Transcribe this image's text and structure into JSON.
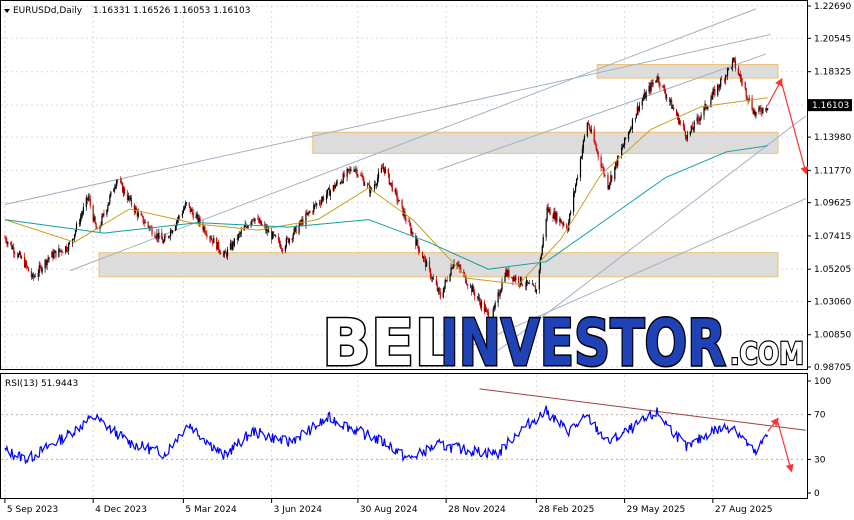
{
  "header": {
    "symbol": "EURUSDd,Daily",
    "ohlc": "1.16331 1.16526 1.16053 1.16103"
  },
  "price_label": "1.16103",
  "watermark": {
    "bel": "BEL",
    "investor": "INVESTOR",
    "com": ".COM"
  },
  "colors": {
    "bull": "#000000",
    "bear": "#c00000",
    "ma_fast": "#c8a020",
    "ma_slow": "#10a0a0",
    "trend": "#9fb1c4",
    "zone_fill": "#dcdcdc",
    "zone_border": "#f0c070",
    "arrow": "#ff3333",
    "rsi_line": "#0000ff",
    "rsi_trend": "#a04040",
    "price_box": "#000000"
  },
  "chart_data": [
    {
      "type": "candlestick",
      "title": "",
      "y_ticks": [
        "1.22690",
        "1.20545",
        "1.18325",
        "1.16103",
        "1.13980",
        "1.11770",
        "1.09625",
        "1.07415",
        "1.05205",
        "1.03060",
        "1.00850",
        "0.98705"
      ],
      "ylim": [
        0.98705,
        1.2269
      ],
      "x_ticks": [
        "5 Sep 2023",
        "4 Dec 2023",
        "5 Mar 2024",
        "3 Jun 2024",
        "30 Aug 2024",
        "28 Nov 2024",
        "28 Feb 2025",
        "29 May 2025",
        "27 Aug 2025"
      ],
      "x_tick_dates": [
        "2023-09-05",
        "2023-12-04",
        "2024-03-05",
        "2024-06-03",
        "2024-08-30",
        "2024-11-28",
        "2025-02-28",
        "2025-05-29",
        "2025-08-27"
      ],
      "series_path": [
        {
          "date": "2023-09-05",
          "price": 1.073
        },
        {
          "date": "2023-09-25",
          "price": 1.056
        },
        {
          "date": "2023-10-03",
          "price": 1.046
        },
        {
          "date": "2023-10-20",
          "price": 1.06
        },
        {
          "date": "2023-11-10",
          "price": 1.068
        },
        {
          "date": "2023-11-29",
          "price": 1.1
        },
        {
          "date": "2023-12-08",
          "price": 1.076
        },
        {
          "date": "2023-12-28",
          "price": 1.112
        },
        {
          "date": "2024-01-20",
          "price": 1.087
        },
        {
          "date": "2024-02-14",
          "price": 1.07
        },
        {
          "date": "2024-03-08",
          "price": 1.095
        },
        {
          "date": "2024-04-16",
          "price": 1.061
        },
        {
          "date": "2024-05-15",
          "price": 1.087
        },
        {
          "date": "2024-06-14",
          "price": 1.067
        },
        {
          "date": "2024-07-17",
          "price": 1.094
        },
        {
          "date": "2024-08-26",
          "price": 1.12
        },
        {
          "date": "2024-09-12",
          "price": 1.104
        },
        {
          "date": "2024-09-25",
          "price": 1.12
        },
        {
          "date": "2024-10-23",
          "price": 1.078
        },
        {
          "date": "2024-11-22",
          "price": 1.034
        },
        {
          "date": "2024-12-06",
          "price": 1.058
        },
        {
          "date": "2025-01-13",
          "price": 1.018
        },
        {
          "date": "2025-01-27",
          "price": 1.05
        },
        {
          "date": "2025-02-28",
          "price": 1.038
        },
        {
          "date": "2025-03-11",
          "price": 1.092
        },
        {
          "date": "2025-04-01",
          "price": 1.08
        },
        {
          "date": "2025-04-21",
          "price": 1.15
        },
        {
          "date": "2025-05-12",
          "price": 1.108
        },
        {
          "date": "2025-06-12",
          "price": 1.16
        },
        {
          "date": "2025-07-01",
          "price": 1.18
        },
        {
          "date": "2025-08-01",
          "price": 1.14
        },
        {
          "date": "2025-09-17",
          "price": 1.19
        },
        {
          "date": "2025-10-09",
          "price": 1.155
        },
        {
          "date": "2025-10-22",
          "price": 1.161
        }
      ],
      "ma_fast_path": [
        {
          "date": "2023-09-05",
          "price": 1.085
        },
        {
          "date": "2023-11-15",
          "price": 1.07
        },
        {
          "date": "2024-01-10",
          "price": 1.092
        },
        {
          "date": "2024-03-20",
          "price": 1.082
        },
        {
          "date": "2024-05-20",
          "price": 1.078
        },
        {
          "date": "2024-07-20",
          "price": 1.085
        },
        {
          "date": "2024-09-10",
          "price": 1.106
        },
        {
          "date": "2024-10-25",
          "price": 1.085
        },
        {
          "date": "2024-12-20",
          "price": 1.046
        },
        {
          "date": "2025-02-10",
          "price": 1.042
        },
        {
          "date": "2025-03-25",
          "price": 1.072
        },
        {
          "date": "2025-05-05",
          "price": 1.115
        },
        {
          "date": "2025-06-25",
          "price": 1.145
        },
        {
          "date": "2025-08-15",
          "price": 1.16
        },
        {
          "date": "2025-10-22",
          "price": 1.166
        }
      ],
      "ma_slow_path": [
        {
          "date": "2023-09-05",
          "price": 1.085
        },
        {
          "date": "2023-12-15",
          "price": 1.076
        },
        {
          "date": "2024-03-20",
          "price": 1.083
        },
        {
          "date": "2024-06-20",
          "price": 1.08
        },
        {
          "date": "2024-09-10",
          "price": 1.085
        },
        {
          "date": "2024-11-10",
          "price": 1.07
        },
        {
          "date": "2025-01-10",
          "price": 1.052
        },
        {
          "date": "2025-03-10",
          "price": 1.057
        },
        {
          "date": "2025-05-10",
          "price": 1.085
        },
        {
          "date": "2025-07-10",
          "price": 1.113
        },
        {
          "date": "2025-09-10",
          "price": 1.13
        },
        {
          "date": "2025-10-22",
          "price": 1.134
        }
      ],
      "zones": [
        {
          "from": "2025-05-01",
          "to": "2025-11-30",
          "low": 1.179,
          "high": 1.188
        },
        {
          "from": "2024-07-15",
          "to": "2025-11-30",
          "low": 1.129,
          "high": 1.143
        },
        {
          "from": "2023-12-10",
          "to": "2025-11-30",
          "low": 1.047,
          "high": 1.063
        }
      ],
      "trendlines": [
        {
          "from": {
            "date": "2023-09-05",
            "price": 1.095
          },
          "to": {
            "date": "2025-10-25",
            "price": 1.208
          }
        },
        {
          "from": {
            "date": "2023-11-10",
            "price": 1.051
          },
          "to": {
            "date": "2025-10-10",
            "price": 1.225
          }
        },
        {
          "from": {
            "date": "2024-11-20",
            "price": 1.118
          },
          "to": {
            "date": "2025-10-20",
            "price": 1.195
          }
        },
        {
          "from": {
            "date": "2025-01-20",
            "price": 0.998
          },
          "to": {
            "date": "2025-11-30",
            "price": 1.154
          }
        },
        {
          "from": {
            "date": "2024-12-20",
            "price": 1.0
          },
          "to": {
            "date": "2025-11-30",
            "price": 1.099
          }
        }
      ],
      "arrows": [
        {
          "from": {
            "date": "2025-10-22",
            "price": 1.161
          },
          "to": {
            "date": "2025-11-05",
            "price": 1.178
          }
        },
        {
          "from": {
            "date": "2025-11-05",
            "price": 1.176
          },
          "to": {
            "date": "2025-11-30",
            "price": 1.116
          }
        }
      ]
    },
    {
      "type": "line",
      "title": "RSI(13) 51.9443",
      "y_ticks": [
        "100",
        "70",
        "30",
        "0"
      ],
      "ylim": [
        0,
        100
      ],
      "levels": [
        70,
        30
      ],
      "series_path": [
        {
          "date": "2023-09-05",
          "value": 38
        },
        {
          "date": "2023-09-28",
          "value": 30
        },
        {
          "date": "2023-11-01",
          "value": 48
        },
        {
          "date": "2023-12-05",
          "value": 68
        },
        {
          "date": "2024-01-10",
          "value": 45
        },
        {
          "date": "2024-02-15",
          "value": 35
        },
        {
          "date": "2024-03-10",
          "value": 62
        },
        {
          "date": "2024-04-15",
          "value": 33
        },
        {
          "date": "2024-05-15",
          "value": 55
        },
        {
          "date": "2024-06-20",
          "value": 45
        },
        {
          "date": "2024-08-01",
          "value": 67
        },
        {
          "date": "2024-09-05",
          "value": 53
        },
        {
          "date": "2024-10-01",
          "value": 43
        },
        {
          "date": "2024-10-20",
          "value": 30
        },
        {
          "date": "2024-11-20",
          "value": 43
        },
        {
          "date": "2024-12-20",
          "value": 38
        },
        {
          "date": "2025-01-20",
          "value": 35
        },
        {
          "date": "2025-02-10",
          "value": 55
        },
        {
          "date": "2025-03-10",
          "value": 73
        },
        {
          "date": "2025-04-01",
          "value": 55
        },
        {
          "date": "2025-04-21",
          "value": 68
        },
        {
          "date": "2025-05-12",
          "value": 45
        },
        {
          "date": "2025-06-10",
          "value": 60
        },
        {
          "date": "2025-07-01",
          "value": 72
        },
        {
          "date": "2025-08-01",
          "value": 40
        },
        {
          "date": "2025-08-25",
          "value": 55
        },
        {
          "date": "2025-09-17",
          "value": 60
        },
        {
          "date": "2025-10-09",
          "value": 35
        },
        {
          "date": "2025-10-22",
          "value": 52
        }
      ],
      "trendline": {
        "from": {
          "date": "2025-01-01",
          "value": 93
        },
        "to": {
          "date": "2025-11-30",
          "value": 56
        }
      },
      "arrows": [
        {
          "from": {
            "date": "2025-10-22",
            "value": 55
          },
          "to": {
            "date": "2025-11-01",
            "value": 66
          }
        },
        {
          "from": {
            "date": "2025-11-01",
            "value": 64
          },
          "to": {
            "date": "2025-11-15",
            "value": 20
          }
        }
      ]
    }
  ]
}
